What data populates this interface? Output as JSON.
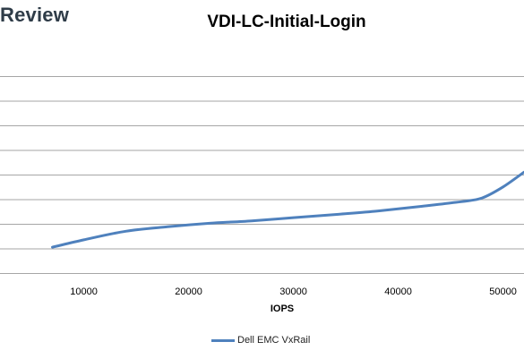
{
  "header": {
    "brand": "Review",
    "title": "VDI-LC-Initial-Login"
  },
  "colors": {
    "series": "#4f81bd",
    "grid": "#a6a6a6"
  },
  "chart_data": {
    "type": "line",
    "title": "VDI-LC-Initial-Login",
    "xlabel": "IOPS",
    "ylabel": "",
    "xlim": [
      2000,
      52000
    ],
    "ylim": [
      0,
      10
    ],
    "x_ticks": [
      10000,
      20000,
      30000,
      40000,
      50000
    ],
    "x_tick_labels": [
      "10000",
      "20000",
      "30000",
      "40000",
      "50000"
    ],
    "y_gridlines": [
      0,
      1,
      2,
      3,
      4,
      5,
      6,
      7,
      8
    ],
    "grid": true,
    "legend_position": "bottom",
    "series": [
      {
        "name": "Dell EMC VxRail",
        "x": [
          7000,
          10000,
          14000,
          18000,
          22000,
          26000,
          30000,
          34000,
          38000,
          42000,
          46000,
          48000,
          50000,
          52000
        ],
        "y": [
          1.05,
          1.35,
          1.7,
          1.88,
          2.02,
          2.12,
          2.25,
          2.38,
          2.52,
          2.7,
          2.9,
          3.05,
          3.5,
          4.1
        ]
      }
    ]
  }
}
